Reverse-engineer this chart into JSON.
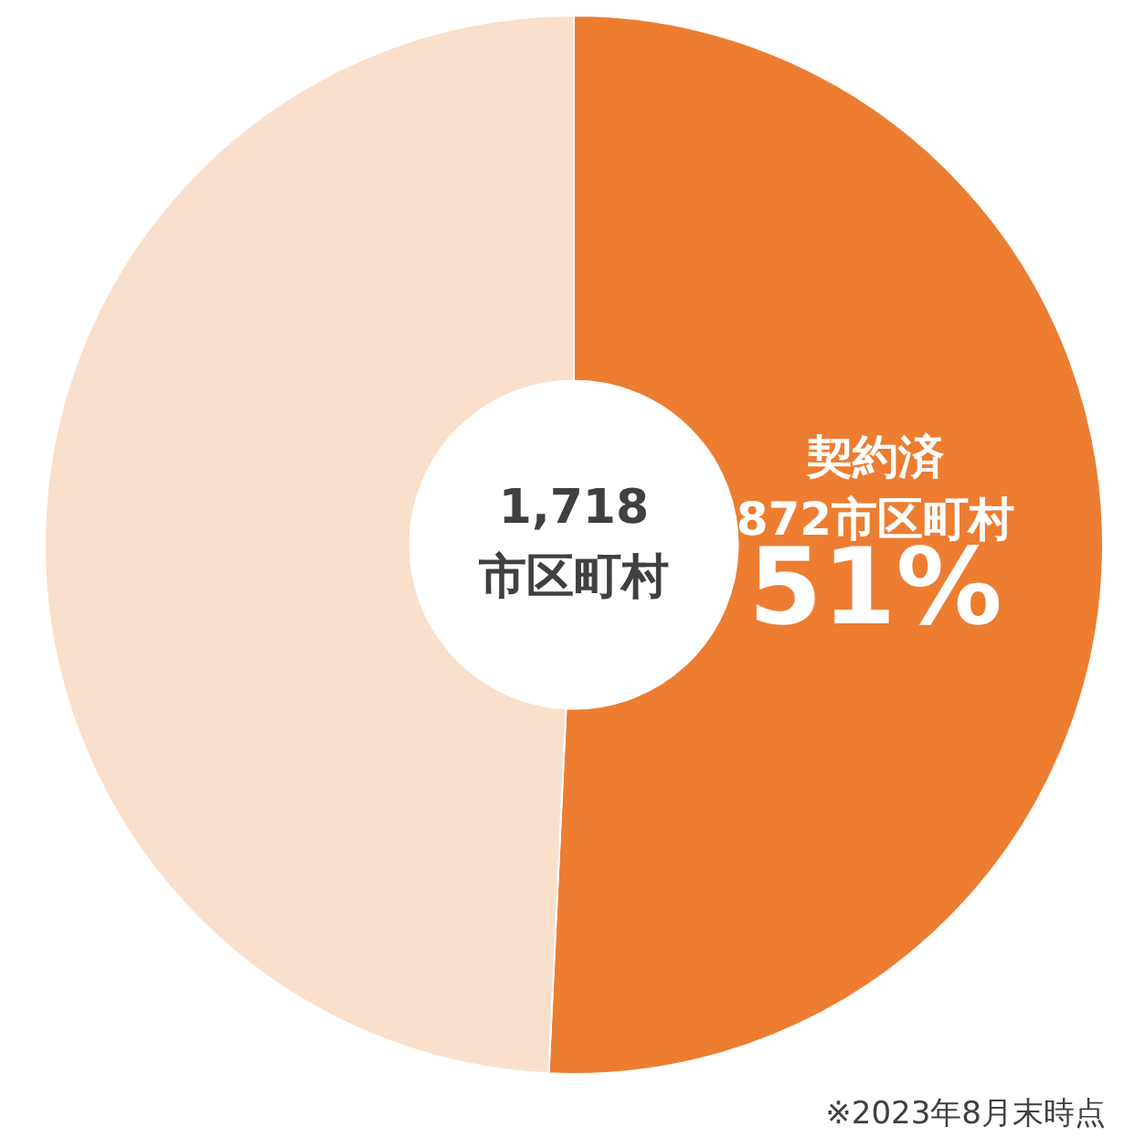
{
  "chart_data": {
    "type": "donut",
    "categories": [
      "契約済",
      null
    ],
    "values": [
      872,
      846
    ],
    "colors": [
      "#ed7d31",
      "#f9e0cc"
    ],
    "value_labels": [
      "872市区町村",
      null
    ],
    "annotations": [
      "1,718\n市区町村",
      "51%",
      "※2023年8月末時点"
    ],
    "legend": false
  }
}
